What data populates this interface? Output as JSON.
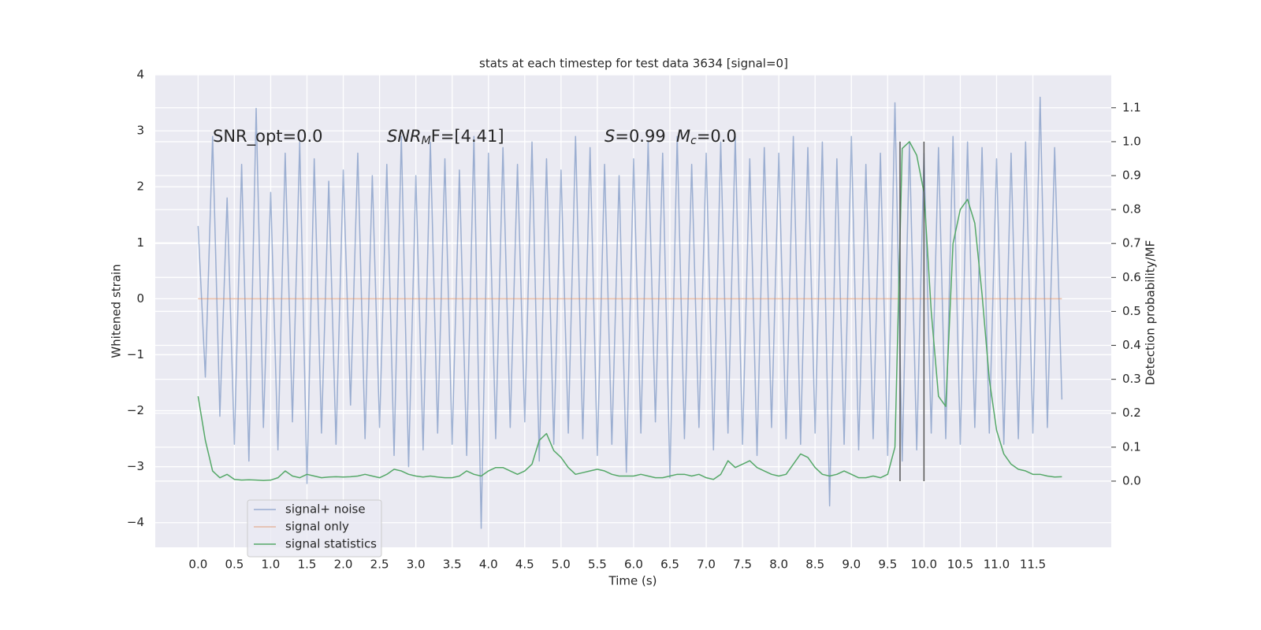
{
  "chart_data": {
    "type": "line",
    "title": "stats at each timestep for test data 3634 [signal=0]",
    "xlabel": "Time (s)",
    "ylabel": "Whitened strain",
    "y2label": "Detection probability/MF",
    "annotations": [
      [
        "SNR_opt=0.0"
      ],
      [
        "SNR",
        "M",
        "F=[4.41]"
      ],
      [
        "S",
        "=0.99"
      ],
      [
        "M",
        "c",
        "=0.0"
      ]
    ],
    "x": [
      0,
      0.1,
      0.2,
      0.3,
      0.4,
      0.5,
      0.6,
      0.7,
      0.8,
      0.9,
      1,
      1.1,
      1.2,
      1.3,
      1.4,
      1.5,
      1.6,
      1.7,
      1.8,
      1.9,
      2,
      2.1,
      2.2,
      2.3,
      2.4,
      2.5,
      2.6,
      2.7,
      2.8,
      2.9,
      3,
      3.1,
      3.2,
      3.3,
      3.4,
      3.5,
      3.6,
      3.7,
      3.8,
      3.9,
      4,
      4.1,
      4.2,
      4.3,
      4.4,
      4.5,
      4.6,
      4.7,
      4.8,
      4.9,
      5,
      5.1,
      5.2,
      5.3,
      5.4,
      5.5,
      5.6,
      5.7,
      5.8,
      5.9,
      6,
      6.1,
      6.2,
      6.3,
      6.4,
      6.5,
      6.6,
      6.7,
      6.8,
      6.9,
      7,
      7.1,
      7.2,
      7.3,
      7.4,
      7.5,
      7.6,
      7.7,
      7.8,
      7.9,
      8,
      8.1,
      8.2,
      8.3,
      8.4,
      8.5,
      8.6,
      8.7,
      8.8,
      8.9,
      9,
      9.1,
      9.2,
      9.3,
      9.4,
      9.5,
      9.6,
      9.7,
      9.8,
      9.9,
      10,
      10.1,
      10.2,
      10.3,
      10.4,
      10.5,
      10.6,
      10.7,
      10.8,
      10.9,
      11,
      11.1,
      11.2,
      11.3,
      11.4,
      11.5,
      11.6,
      11.7,
      11.8,
      11.9
    ],
    "series": [
      {
        "name": "signal+ noise",
        "color": "#4c72b0",
        "opacity": 0.5,
        "values": [
          1.3,
          -1.4,
          2.9,
          -2.1,
          1.8,
          -2.6,
          2.4,
          -2.9,
          3.4,
          -2.3,
          1.9,
          -2.7,
          2.6,
          -2.2,
          2.8,
          -3.3,
          2.5,
          -2.4,
          2.1,
          -2.6,
          2.3,
          -1.9,
          2.6,
          -2.5,
          2.2,
          -2.3,
          2.4,
          -2.8,
          2.9,
          -3.0,
          2.2,
          -2.7,
          2.8,
          -2.4,
          2.5,
          -2.6,
          2.3,
          -2.8,
          2.9,
          -4.1,
          2.6,
          -2.5,
          2.7,
          -2.3,
          2.4,
          -2.2,
          2.8,
          -2.9,
          2.5,
          -2.6,
          2.3,
          -2.4,
          2.9,
          -2.5,
          2.7,
          -2.8,
          2.4,
          -2.6,
          2.2,
          -3.1,
          2.5,
          -2.4,
          2.8,
          -2.2,
          2.6,
          -3.2,
          2.9,
          -2.5,
          2.4,
          -2.3,
          2.6,
          -2.7,
          2.8,
          -2.4,
          2.9,
          -2.6,
          2.5,
          -2.8,
          2.7,
          -2.3,
          2.6,
          -2.5,
          2.9,
          -2.6,
          2.7,
          -2.4,
          2.8,
          -3.7,
          2.5,
          -2.6,
          2.9,
          -2.7,
          2.4,
          -2.5,
          2.6,
          -2.8,
          3.5,
          -2.9,
          2.8,
          -2.7,
          2.6,
          -2.4,
          2.7,
          -2.5,
          2.9,
          -2.6,
          2.8,
          -2.3,
          2.7,
          -2.4,
          2.5,
          -2.6,
          2.6,
          -2.5,
          2.8,
          -2.4,
          3.6,
          -2.3,
          2.7,
          -1.8
        ]
      },
      {
        "name": "signal only",
        "color": "#dd8452",
        "opacity": 0.5,
        "values": [
          0,
          0,
          0,
          0,
          0,
          0,
          0,
          0,
          0,
          0,
          0,
          0,
          0,
          0,
          0,
          0,
          0,
          0,
          0,
          0,
          0,
          0,
          0,
          0,
          0,
          0,
          0,
          0,
          0,
          0,
          0,
          0,
          0,
          0,
          0,
          0,
          0,
          0,
          0,
          0,
          0,
          0,
          0,
          0,
          0,
          0,
          0,
          0,
          0,
          0,
          0,
          0,
          0,
          0,
          0,
          0,
          0,
          0,
          0,
          0,
          0,
          0,
          0,
          0,
          0,
          0,
          0,
          0,
          0,
          0,
          0,
          0,
          0,
          0,
          0,
          0,
          0,
          0,
          0,
          0,
          0,
          0,
          0,
          0,
          0,
          0,
          0,
          0,
          0,
          0,
          0,
          0,
          0,
          0,
          0,
          0,
          0,
          0,
          0,
          0,
          0,
          0,
          0,
          0,
          0,
          0,
          0,
          0,
          0,
          0,
          0,
          0,
          0,
          0,
          0,
          0,
          0,
          0,
          0,
          0
        ]
      },
      {
        "name": "signal statistics",
        "color": "#55a868",
        "opacity": 1,
        "axis": "y2",
        "values": [
          0.25,
          0.12,
          0.03,
          0.01,
          0.02,
          0.005,
          0.003,
          0.004,
          0.003,
          0.002,
          0.003,
          0.01,
          0.03,
          0.015,
          0.01,
          0.02,
          0.015,
          0.01,
          0.012,
          0.013,
          0.012,
          0.013,
          0.015,
          0.02,
          0.015,
          0.01,
          0.02,
          0.035,
          0.03,
          0.02,
          0.015,
          0.012,
          0.015,
          0.012,
          0.01,
          0.01,
          0.015,
          0.03,
          0.02,
          0.015,
          0.03,
          0.04,
          0.04,
          0.03,
          0.02,
          0.03,
          0.05,
          0.12,
          0.14,
          0.09,
          0.07,
          0.04,
          0.02,
          0.025,
          0.03,
          0.035,
          0.03,
          0.02,
          0.015,
          0.015,
          0.015,
          0.02,
          0.015,
          0.01,
          0.01,
          0.015,
          0.02,
          0.02,
          0.015,
          0.02,
          0.01,
          0.005,
          0.02,
          0.06,
          0.04,
          0.05,
          0.06,
          0.04,
          0.03,
          0.02,
          0.015,
          0.02,
          0.05,
          0.08,
          0.07,
          0.04,
          0.02,
          0.015,
          0.02,
          0.03,
          0.02,
          0.01,
          0.01,
          0.015,
          0.01,
          0.02,
          0.1,
          0.98,
          1.0,
          0.96,
          0.85,
          0.5,
          0.25,
          0.22,
          0.7,
          0.8,
          0.83,
          0.76,
          0.55,
          0.3,
          0.15,
          0.08,
          0.05,
          0.035,
          0.03,
          0.02,
          0.02,
          0.015,
          0.012,
          0.013
        ]
      }
    ],
    "vlines": {
      "x": [
        9.67,
        10.0
      ],
      "ymin": 0,
      "ymax": 1.0,
      "color": "#555555",
      "axis": "y2"
    },
    "xlim": [
      -0.59,
      12.58
    ],
    "ylim": [
      -4.44,
      4.0
    ],
    "y2lim": [
      -0.195,
      1.197
    ],
    "xticks": [
      {
        "value": 0,
        "label": "0.0"
      },
      {
        "value": 0.5,
        "label": "0.5"
      },
      {
        "value": 1,
        "label": "1.0"
      },
      {
        "value": 1.5,
        "label": "1.5"
      },
      {
        "value": 2,
        "label": "2.0"
      },
      {
        "value": 2.5,
        "label": "2.5"
      },
      {
        "value": 3,
        "label": "3.0"
      },
      {
        "value": 3.5,
        "label": "3.5"
      },
      {
        "value": 4,
        "label": "4.0"
      },
      {
        "value": 4.5,
        "label": "4.5"
      },
      {
        "value": 5,
        "label": "5.0"
      },
      {
        "value": 5.5,
        "label": "5.5"
      },
      {
        "value": 6,
        "label": "6.0"
      },
      {
        "value": 6.5,
        "label": "6.5"
      },
      {
        "value": 7,
        "label": "7.0"
      },
      {
        "value": 7.5,
        "label": "7.5"
      },
      {
        "value": 8,
        "label": "8.0"
      },
      {
        "value": 8.5,
        "label": "8.5"
      },
      {
        "value": 9,
        "label": "9.0"
      },
      {
        "value": 9.5,
        "label": "9.5"
      },
      {
        "value": 10,
        "label": "10.0"
      },
      {
        "value": 10.5,
        "label": "10.5"
      },
      {
        "value": 11,
        "label": "11.0"
      },
      {
        "value": 11.5,
        "label": "11.5"
      }
    ],
    "yticks": [
      {
        "value": -4,
        "label": "−4"
      },
      {
        "value": -3,
        "label": "−3"
      },
      {
        "value": -2,
        "label": "−2"
      },
      {
        "value": -1,
        "label": "−1"
      },
      0,
      1,
      2,
      3,
      4
    ],
    "y2ticks": [
      {
        "value": 0,
        "label": "0.0"
      },
      {
        "value": 0.1,
        "label": "0.1"
      },
      {
        "value": 0.2,
        "label": "0.2"
      },
      {
        "value": 0.3,
        "label": "0.3"
      },
      {
        "value": 0.4,
        "label": "0.4"
      },
      {
        "value": 0.5,
        "label": "0.5"
      },
      {
        "value": 0.6,
        "label": "0.6"
      },
      {
        "value": 0.7,
        "label": "0.7"
      },
      {
        "value": 0.8,
        "label": "0.8"
      },
      {
        "value": 0.9,
        "label": "0.9"
      },
      {
        "value": 1.0,
        "label": "1.0"
      },
      {
        "value": 1.1,
        "label": "1.1"
      }
    ],
    "grid": true,
    "background": "#eaeaf2",
    "legend": "lower left"
  }
}
